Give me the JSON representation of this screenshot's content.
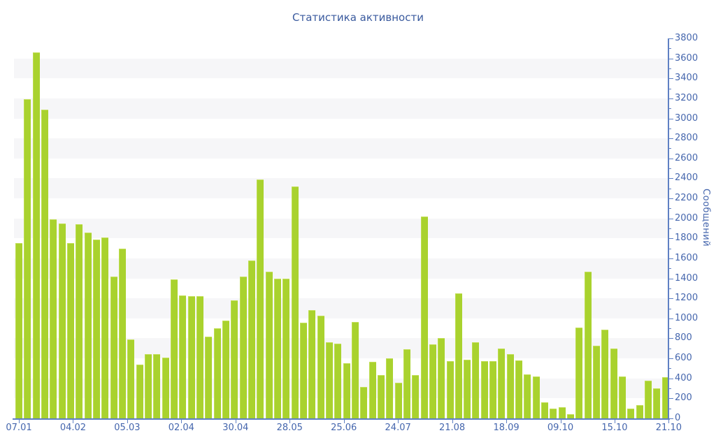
{
  "chart_data": {
    "type": "bar",
    "title": "Статистика активности",
    "ylabel": "Сообщений",
    "xlabel": "",
    "ylim": [
      0,
      3800
    ],
    "y_tick_step": 200,
    "y_minor_tick_step": 100,
    "grid": "alternating horizontal bands of 200 units, y axis on right, labels in Russian",
    "legend": "none",
    "x_tick_labels": [
      "07.01",
      "04.02",
      "05.03",
      "02.04",
      "30.04",
      "28.05",
      "25.06",
      "24.07",
      "21.08",
      "18.09",
      "09.10",
      "15.10",
      "21.10"
    ],
    "values": [
      1750,
      3190,
      3660,
      3090,
      1990,
      1950,
      1750,
      1940,
      1860,
      1790,
      1810,
      1420,
      1700,
      790,
      535,
      640,
      640,
      610,
      1390,
      1230,
      1220,
      1220,
      820,
      900,
      980,
      1180,
      1420,
      1580,
      2390,
      1470,
      1400,
      1400,
      2320,
      955,
      1085,
      1030,
      760,
      745,
      555,
      965,
      315,
      565,
      435,
      600,
      355,
      690,
      430,
      2020,
      740,
      800,
      570,
      1250,
      590,
      760,
      575,
      570,
      700,
      640,
      580,
      440,
      420,
      160,
      100,
      115,
      40,
      910,
      1470,
      730,
      890,
      700,
      420,
      100,
      130,
      380,
      300,
      410
    ]
  },
  "colors": {
    "bar_fill": "#a9d22e",
    "bar_edge_highlight": "#bcdc4e",
    "band_gray": "#f6f6f8",
    "axis_line": "#5f80c3",
    "axis_text": "#4566ad",
    "title_text": "#3a5a9e"
  }
}
